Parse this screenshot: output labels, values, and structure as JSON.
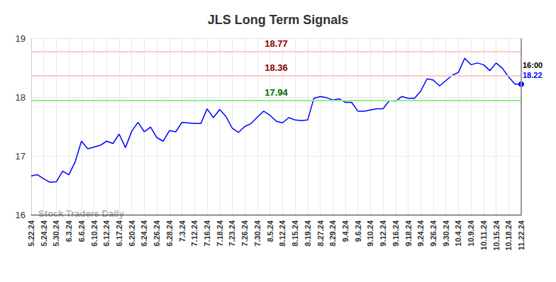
{
  "chart_data": {
    "type": "line",
    "title": "JLS Long Term Signals",
    "watermark": "Stock Traders Daily",
    "categories": [
      "5.22.24",
      null,
      "5.24.24",
      null,
      "5.30.24",
      null,
      "6.3.24",
      null,
      "6.6.24",
      null,
      "6.10.24",
      null,
      "6.12.24",
      null,
      "6.17.24",
      null,
      "6.20.24",
      null,
      "6.24.24",
      null,
      "6.26.24",
      null,
      "6.28.24",
      null,
      "7.3.24",
      null,
      "7.12.24",
      null,
      "7.16.24",
      null,
      "7.18.24",
      null,
      "7.23.24",
      null,
      "7.26.24",
      null,
      "7.30.24",
      null,
      "8.5.24",
      null,
      "8.12.24",
      null,
      "8.15.24",
      null,
      "8.19.24",
      null,
      "8.27.24",
      null,
      "8.29.24",
      null,
      "9.4.24",
      null,
      "9.6.24",
      null,
      "9.10.24",
      null,
      "9.12.24",
      null,
      "9.16.24",
      null,
      "9.18.24",
      null,
      "9.24.24",
      null,
      "9.26.24",
      null,
      "9.30.24",
      null,
      "10.4.24",
      null,
      "10.9.24",
      null,
      "10.11.24",
      null,
      "10.15.24",
      null,
      "10.18.24",
      null,
      "11.22.24"
    ],
    "values": [
      16.66,
      16.68,
      16.61,
      16.55,
      16.56,
      16.74,
      16.68,
      16.9,
      17.25,
      17.12,
      17.15,
      17.18,
      17.25,
      17.21,
      17.37,
      17.14,
      17.42,
      17.57,
      17.41,
      17.49,
      17.31,
      17.25,
      17.43,
      17.41,
      17.57,
      17.56,
      17.55,
      17.55,
      17.8,
      17.65,
      17.79,
      17.67,
      17.47,
      17.4,
      17.5,
      17.55,
      17.66,
      17.76,
      17.69,
      17.59,
      17.56,
      17.65,
      17.61,
      17.6,
      17.61,
      17.98,
      18.01,
      17.99,
      17.95,
      17.97,
      17.91,
      17.91,
      17.76,
      17.76,
      17.78,
      17.8,
      17.8,
      17.94,
      17.93,
      18.01,
      17.98,
      17.98,
      18.1,
      18.31,
      18.29,
      18.19,
      18.28,
      18.37,
      18.42,
      18.66,
      18.55,
      18.58,
      18.55,
      18.45,
      18.58,
      18.49,
      18.34,
      18.22,
      18.22
    ],
    "color": "#0000ff",
    "end_annotation": "16:00",
    "signal_lines": [
      {
        "value": 18.77,
        "label": "18.77",
        "color": "#ffc8c8"
      },
      {
        "value": 18.36,
        "label": "18.36",
        "color": "#ffc8c8"
      },
      {
        "value": 17.94,
        "label": "17.94",
        "color": "#90ee90"
      }
    ],
    "ylim": [
      16,
      19
    ],
    "yticks": [
      16,
      17,
      18,
      19
    ],
    "grid": true
  }
}
